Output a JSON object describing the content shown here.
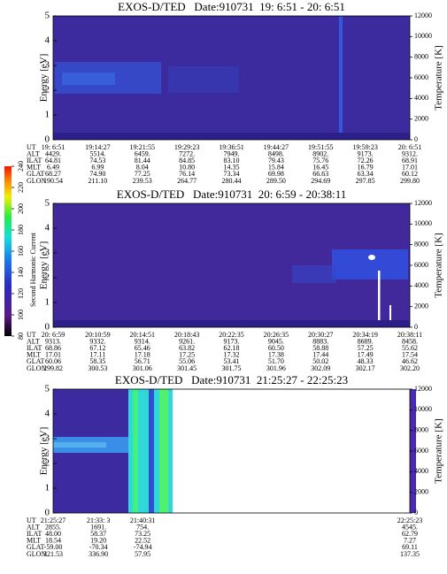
{
  "chart_data": [
    {
      "type": "spectrogram",
      "title": "EXOS-D/TED   Date:910731  19: 6:51 - 20: 6:51",
      "ylabel": "Energy [eV]",
      "ylim": [
        0,
        5
      ],
      "yticks": [
        0,
        1,
        2,
        3,
        4,
        5
      ],
      "y2label": "Temperature [K]",
      "y2lim": [
        0,
        12000
      ],
      "y2ticks": [
        0,
        2000,
        4000,
        6000,
        8000,
        10000,
        12000
      ],
      "ephemeris": {
        "labels": [
          "UT",
          "ALT",
          "ILAT",
          "MLT",
          "GLAT",
          "GLON"
        ],
        "rows": [
          [
            "19: 6:51",
            "19:14:27",
            "19:21:55",
            "19:29:23",
            "19:36:51",
            "19:44:27",
            "19:51:55",
            "19:59:23",
            "20: 6:51"
          ],
          [
            "4429.",
            "5514.",
            "6459.",
            "7272.",
            "7949.",
            "8498.",
            "8902.",
            "9173.",
            "9312."
          ],
          [
            "64.81",
            "74.53",
            "81.44",
            "84.85",
            "83.10",
            "79.43",
            "75.76",
            "72.26",
            "68.91"
          ],
          [
            "6.49",
            "6.99",
            "8.04",
            "10.80",
            "14.35",
            "15.84",
            "16.45",
            "16.79",
            "17.01"
          ],
          [
            "68.27",
            "74.90",
            "77.25",
            "76.14",
            "73.34",
            "69.98",
            "66.63",
            "63.34",
            "60.12"
          ],
          [
            "190.54",
            "211.10",
            "239.53",
            "264.77",
            "280.44",
            "289.50",
            "294.69",
            "297.85",
            "299.80"
          ]
        ]
      }
    },
    {
      "type": "spectrogram",
      "title": "EXOS-D/TED   Date:910731  20: 6:59 - 20:38:11",
      "ylabel": "Energy [eV]",
      "ylim": [
        0,
        5
      ],
      "yticks": [
        0,
        1,
        2,
        3,
        4,
        5
      ],
      "y2label": "Temperature [K]",
      "y2lim": [
        0,
        12000
      ],
      "y2ticks": [
        0,
        2000,
        4000,
        6000,
        8000,
        10000,
        12000
      ],
      "ephemeris": {
        "labels": [
          "UT",
          "ALT",
          "ILAT",
          "MLT",
          "GLAT",
          "GLON"
        ],
        "rows": [
          [
            "20: 6:59",
            "20:10:59",
            "20:14:51",
            "20:18:43",
            "20:22:35",
            "20:26:35",
            "20:30:27",
            "20:34:19",
            "20:38:11"
          ],
          [
            "9313.",
            "9332.",
            "9314.",
            "9261.",
            "9173.",
            "9045.",
            "8883.",
            "8689.",
            "8458."
          ],
          [
            "68.86",
            "67.12",
            "65.46",
            "63.82",
            "62.18",
            "60.50",
            "58.88",
            "57.25",
            "55.62"
          ],
          [
            "17.01",
            "17.11",
            "17.18",
            "17.25",
            "17.32",
            "17.38",
            "17.44",
            "17.49",
            "17.54"
          ],
          [
            "60.06",
            "58.35",
            "56.71",
            "55.06",
            "53.41",
            "51.70",
            "50.02",
            "48.33",
            "46.62"
          ],
          [
            "299.82",
            "300.53",
            "301.06",
            "301.45",
            "301.75",
            "301.96",
            "302.09",
            "302.17",
            "302.20"
          ]
        ]
      }
    },
    {
      "type": "spectrogram",
      "title": "EXOS-D/TED   Date:910731  21:25:27 - 22:25:23",
      "ylabel": "Energy [eV]",
      "ylim": [
        0,
        5
      ],
      "yticks": [
        0,
        1,
        2,
        3,
        4,
        5
      ],
      "y2label": "Temperature [K]",
      "y2lim": [
        0,
        12000
      ],
      "y2ticks": [
        0,
        2000,
        4000,
        6000,
        8000,
        10000,
        12000
      ],
      "ephemeris": {
        "labels": [
          "UT",
          "ALT",
          "ILAT",
          "MLT",
          "GLAT",
          "GLON"
        ],
        "rows": [
          [
            "21:25:27",
            "21:33: 3",
            "21:40:31",
            "22:25:23"
          ],
          [
            "2855.",
            "1691.",
            "754.",
            "4545."
          ],
          [
            "48.00",
            "58.37",
            "73.25",
            "62.79"
          ],
          [
            "18.54",
            "19.20",
            "22.52",
            "7.27"
          ],
          [
            "-59.00",
            "-70.34",
            "-74.94",
            "69.11"
          ],
          [
            "321.53",
            "336.90",
            "57.95",
            "137.35"
          ]
        ]
      }
    }
  ],
  "colorbar": {
    "label": "Second Harmonic Current",
    "lim": [
      80,
      240
    ],
    "ticks": [
      80,
      100,
      120,
      140,
      160,
      180,
      200,
      220,
      240
    ]
  }
}
